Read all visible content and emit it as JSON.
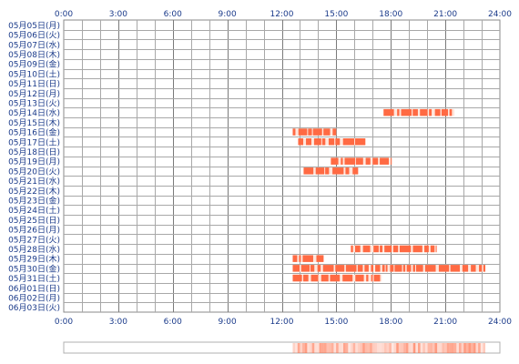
{
  "chart_data": {
    "type": "heatmap",
    "x_ticks": [
      "0:00",
      "3:00",
      "6:00",
      "9:00",
      "12:00",
      "15:00",
      "18:00",
      "21:00",
      "24:00"
    ],
    "x_range_hours": [
      0,
      24
    ],
    "grid": true,
    "days": [
      "05月05日(月)",
      "05月06日(火)",
      "05月07日(水)",
      "05月08日(木)",
      "05月09日(金)",
      "05月10日(土)",
      "05月11日(日)",
      "05月12日(月)",
      "05月13日(火)",
      "05月14日(水)",
      "05月15日(木)",
      "05月16日(金)",
      "05月17日(土)",
      "05月18日(日)",
      "05月19日(月)",
      "05月20日(火)",
      "05月21日(水)",
      "05月22日(木)",
      "05月23日(金)",
      "05月24日(土)",
      "05月25日(日)",
      "05月26日(月)",
      "05月27日(火)",
      "05月28日(水)",
      "05月29日(木)",
      "05月30日(金)",
      "05月31日(土)",
      "06月01日(日)",
      "06月02日(月)",
      "06月03日(火)"
    ],
    "activity_color": "#ff6a43",
    "bar_color_light": "#ffe6dc",
    "activity": [
      {
        "day": "05月14日(水)",
        "start": 17.6,
        "end": 21.5
      },
      {
        "day": "05月16日(金)",
        "start": 12.6,
        "end": 15.0
      },
      {
        "day": "05月17日(土)",
        "start": 12.9,
        "end": 16.6
      },
      {
        "day": "05月19日(月)",
        "start": 14.7,
        "end": 18.0
      },
      {
        "day": "05月20日(火)",
        "start": 13.2,
        "end": 16.2
      },
      {
        "day": "05月28日(水)",
        "start": 15.8,
        "end": 20.5
      },
      {
        "day": "05月29日(木)",
        "start": 12.6,
        "end": 14.3
      },
      {
        "day": "05月30日(金)",
        "start": 12.6,
        "end": 23.2
      },
      {
        "day": "05月31日(土)",
        "start": 12.6,
        "end": 17.5
      }
    ]
  }
}
